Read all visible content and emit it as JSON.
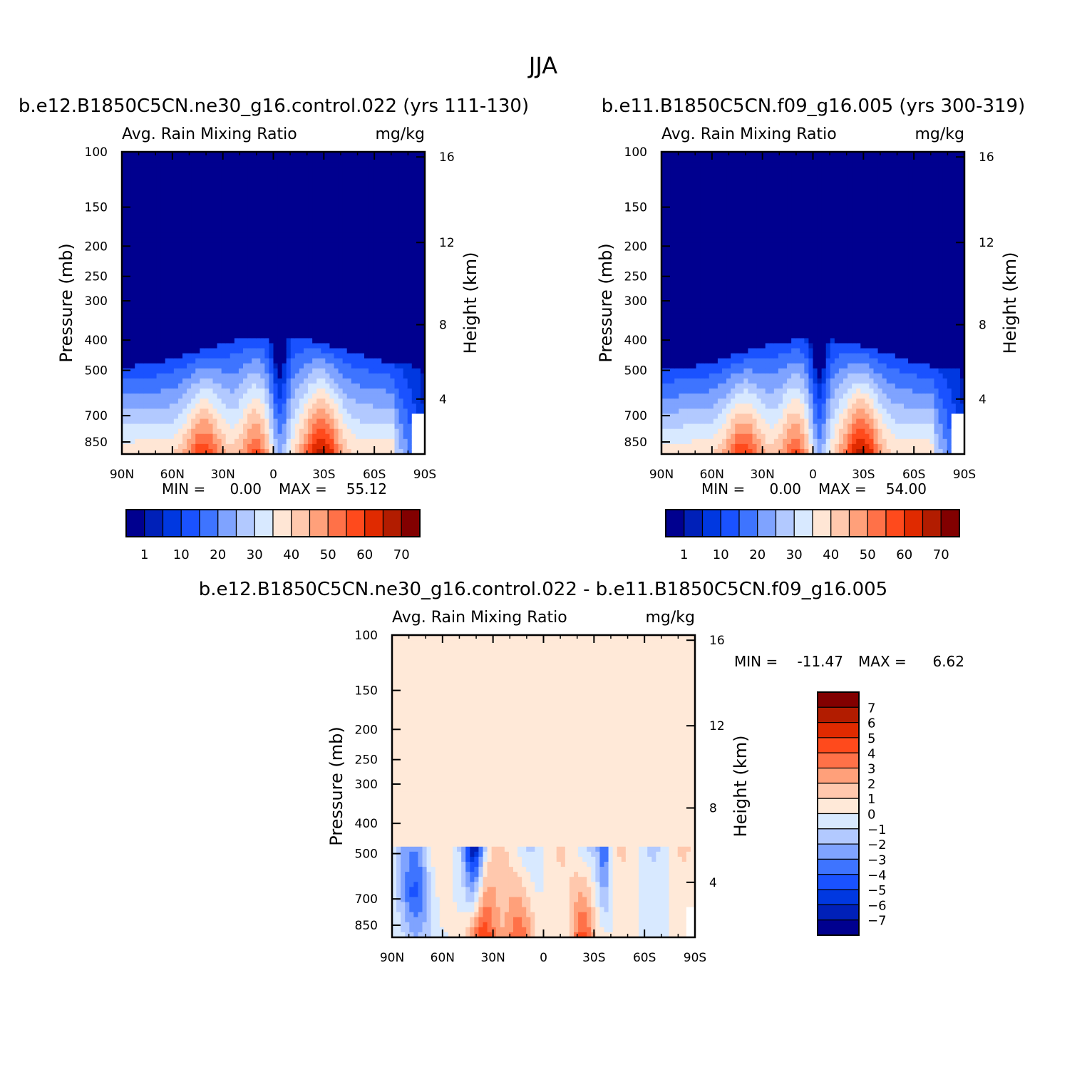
{
  "figure": {
    "season_title": "JJA"
  },
  "colors": {
    "abs_scale": [
      "#00008f",
      "#0020b8",
      "#0038e0",
      "#1a52ff",
      "#3e74ff",
      "#7fa3ff",
      "#b2c9ff",
      "#d8e9ff",
      "#ffe6d5",
      "#ffc8ad",
      "#ffa07a",
      "#ff7148",
      "#ff4a1c",
      "#e02a00",
      "#b21c00",
      "#820000"
    ],
    "diff_scale": [
      "#00008f",
      "#0020b8",
      "#0038e0",
      "#1a52ff",
      "#3e74ff",
      "#7fa3ff",
      "#b2c9ff",
      "#d8e9ff",
      "#ffe9d8",
      "#ffc8ad",
      "#ffa07a",
      "#ff7148",
      "#ff4a1c",
      "#e02a00",
      "#b21c00",
      "#820000"
    ]
  },
  "chart_data": [
    {
      "type": "heatmap",
      "title": "b.e12.B1850C5CN.ne30_g16.control.022 (yrs 111-130)",
      "subtitle_left": "Avg. Rain Mixing Ratio",
      "subtitle_right": "mg/kg",
      "ylabel": "Pressure (mb)",
      "y2label": "Height (km)",
      "xticks": [
        "90N",
        "60N",
        "30N",
        "0",
        "30S",
        "60S",
        "90S"
      ],
      "yticks": [
        "100",
        "150",
        "200",
        "250",
        "300",
        "400",
        "500",
        "700",
        "850"
      ],
      "y2ticks": [
        "16",
        "12",
        "8",
        "4"
      ],
      "min_label": "MIN =",
      "min_value": "0.00",
      "max_label": "MAX =",
      "max_value": "55.12",
      "colorbar_labels": [
        "1",
        "10",
        "20",
        "30",
        "40",
        "50",
        "60",
        "70"
      ]
    },
    {
      "type": "heatmap",
      "title": "b.e11.B1850C5CN.f09_g16.005 (yrs 300-319)",
      "subtitle_left": "Avg. Rain Mixing Ratio",
      "subtitle_right": "mg/kg",
      "ylabel": "Pressure (mb)",
      "y2label": "Height (km)",
      "xticks": [
        "90N",
        "60N",
        "30N",
        "0",
        "30S",
        "60S",
        "90S"
      ],
      "yticks": [
        "100",
        "150",
        "200",
        "250",
        "300",
        "400",
        "500",
        "700",
        "850"
      ],
      "y2ticks": [
        "16",
        "12",
        "8",
        "4"
      ],
      "min_label": "MIN =",
      "min_value": "0.00",
      "max_label": "MAX =",
      "max_value": "54.00",
      "colorbar_labels": [
        "1",
        "10",
        "20",
        "30",
        "40",
        "50",
        "60",
        "70"
      ]
    },
    {
      "type": "heatmap",
      "title": "b.e12.B1850C5CN.ne30_g16.control.022 - b.e11.B1850C5CN.f09_g16.005",
      "subtitle_left": "Avg. Rain Mixing Ratio",
      "subtitle_right": "mg/kg",
      "ylabel": "Pressure (mb)",
      "y2label": "Height (km)",
      "xticks": [
        "90N",
        "60N",
        "30N",
        "0",
        "30S",
        "60S",
        "90S"
      ],
      "yticks": [
        "100",
        "150",
        "200",
        "250",
        "300",
        "400",
        "500",
        "700",
        "850"
      ],
      "y2ticks": [
        "16",
        "12",
        "8",
        "4"
      ],
      "min_label": "MIN =",
      "min_value": "-11.47",
      "max_label": "MAX =",
      "max_value": "6.62",
      "colorbar_labels": [
        "7",
        "6",
        "5",
        "4",
        "3",
        "2",
        "1",
        "0",
        "-1",
        "-2",
        "-3",
        "-4",
        "-5",
        "-6",
        "-7"
      ]
    }
  ]
}
